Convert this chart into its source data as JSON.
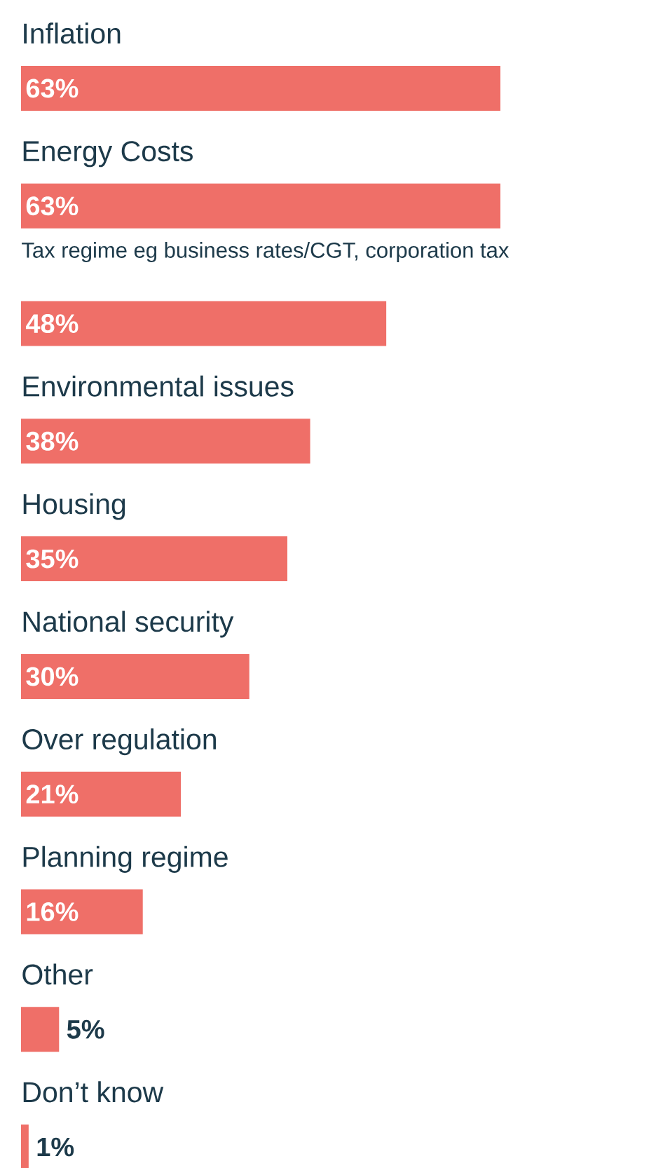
{
  "chart_data": {
    "type": "bar",
    "orientation": "horizontal",
    "color": "#ef6f68",
    "categories": [
      "Inflation",
      "Energy Costs",
      "Tax regime eg business rates/CGT, corporation tax",
      "Environmental issues",
      "Housing",
      "National security",
      "Over regulation",
      "Planning regime",
      "Other",
      "Don’t know"
    ],
    "values": [
      63,
      63,
      48,
      38,
      35,
      30,
      21,
      16,
      5,
      1
    ],
    "value_labels": [
      "63%",
      "63%",
      "48%",
      "38%",
      "35%",
      "30%",
      "21%",
      "16%",
      "5%",
      "1%"
    ]
  }
}
